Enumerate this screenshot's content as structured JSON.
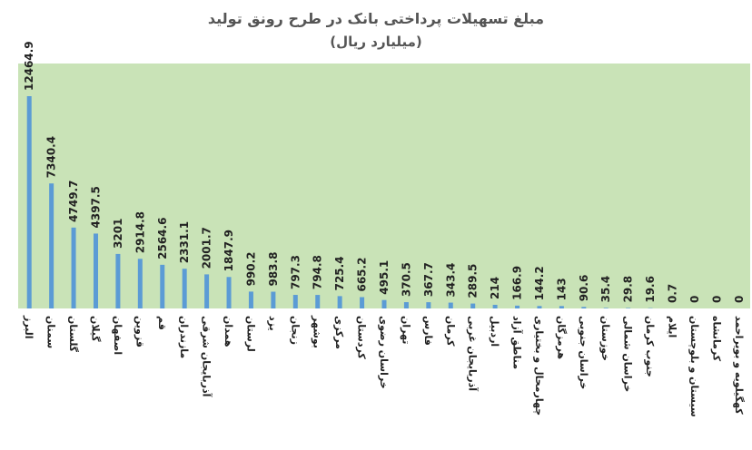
{
  "chart_data": {
    "type": "bar",
    "title": "مبلغ تسهیلات پرداختی بانک در طرح رونق تولید",
    "subtitle": "(میلیارد ریال)",
    "xlabel": "",
    "ylabel": "",
    "ylim": [
      0,
      13000
    ],
    "grid": false,
    "legend": "none",
    "colors": {
      "bar": "#5B9BD5",
      "plot_background": "#C9E3B7",
      "text": "#222222",
      "title": "#555555"
    },
    "categories": [
      "البرز",
      "سمنان",
      "گلستان",
      "گیلان",
      "اصفهان",
      "قزوین",
      "قم",
      "مازندران",
      "آذربایجان شرقی",
      "همدان",
      "لرستان",
      "یزد",
      "زنجان",
      "بوشهر",
      "مرکزی",
      "کردستان",
      "خراسان رضوی",
      "تهران",
      "فارس",
      "کرمان",
      "آذربایجان غربی",
      "اردبیل",
      "مناطق آزاد",
      "چهارمحال و بختیاری",
      "هرمزگان",
      "خراسان جنوبی",
      "خوزستان",
      "خراسان شمالی",
      "جنوب کرمان",
      "ایلام",
      "سیستان و بلوچستان",
      "کرمانشاه",
      "کهگیلویه و بویراحمد"
    ],
    "value_labels": [
      "12464.9",
      "7340.4",
      "4749.7",
      "4397.5",
      "3201",
      "2914.8",
      "2564.6",
      "2331.1",
      "2001.7",
      "1847.9",
      "990.2",
      "983.8",
      "797.3",
      "794.8",
      "725.4",
      "665.2",
      "495.1",
      "370.5",
      "367.7",
      "343.4",
      "289.5",
      "214",
      "166.9",
      "144.2",
      "143",
      "90.6",
      "35.4",
      "29.8",
      "19.6",
      "0.7",
      "0",
      "0",
      "0"
    ],
    "values": [
      12464.9,
      7340.4,
      4749.7,
      4397.5,
      3201,
      2914.8,
      2564.6,
      2331.1,
      2001.7,
      1847.9,
      990.2,
      983.8,
      797.3,
      794.8,
      725.4,
      665.2,
      495.1,
      370.5,
      367.7,
      343.4,
      289.5,
      214,
      166.9,
      144.2,
      143,
      90.6,
      35.4,
      29.8,
      19.6,
      0.7,
      0,
      0,
      0
    ]
  }
}
